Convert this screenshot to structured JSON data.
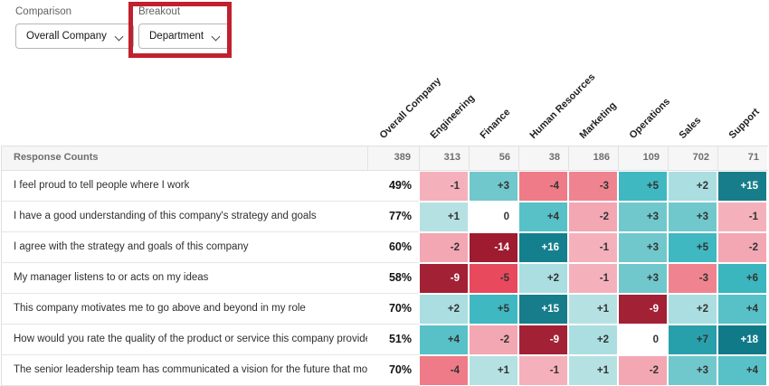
{
  "toolbar": {
    "comparison_label": "Comparison",
    "comparison_value": "Overall Company",
    "breakout_label": "Breakout",
    "breakout_value": "Department",
    "highlight_color": "#c1202e"
  },
  "chart_data": {
    "type": "heatmap",
    "columns": [
      "Overall Company",
      "Engineering",
      "Finance",
      "Human Resources",
      "Marketing",
      "Operations",
      "Sales",
      "Support"
    ],
    "response_counts_label": "Response Counts",
    "response_counts": [
      "389",
      "313",
      "56",
      "38",
      "186",
      "109",
      "702",
      "71"
    ],
    "rows": [
      {
        "label": "I feel proud to tell people where I work",
        "overall_pct": "49%",
        "deltas": [
          "-1",
          "+3",
          "-4",
          "-3",
          "+5",
          "+2",
          "+15"
        ]
      },
      {
        "label": "I have a good understanding of this company's strategy and goals",
        "overall_pct": "77%",
        "deltas": [
          "+1",
          "0",
          "+4",
          "-2",
          "+3",
          "+3",
          "-1"
        ]
      },
      {
        "label": "I agree with the strategy and goals of this company",
        "overall_pct": "60%",
        "deltas": [
          "-2",
          "-14",
          "+16",
          "-1",
          "+3",
          "+5",
          "-2"
        ]
      },
      {
        "label": "My manager listens to or acts on my ideas",
        "overall_pct": "58%",
        "deltas": [
          "-9",
          "-5",
          "+2",
          "-1",
          "+3",
          "-3",
          "+6"
        ]
      },
      {
        "label": "This company motivates me to go above and beyond in my role",
        "overall_pct": "70%",
        "deltas": [
          "+2",
          "+5",
          "+15",
          "+1",
          "-9",
          "+2",
          "+4"
        ]
      },
      {
        "label": "How would you rate the quality of the product or service this company provides to its customers?",
        "overall_pct": "51%",
        "deltas": [
          "+4",
          "-2",
          "-9",
          "+2",
          "0",
          "+7",
          "+18"
        ]
      },
      {
        "label": "The senior leadership team has communicated a vision for the future that motivates me",
        "overall_pct": "70%",
        "deltas": [
          "-4",
          "+1",
          "-1",
          "+1",
          "-2",
          "+3",
          "+4"
        ]
      }
    ],
    "value_colors": {
      "-14": {
        "bg": "#9e1b30",
        "fg": "#ffffff"
      },
      "-9": {
        "bg": "#a32135",
        "fg": "#ffffff"
      },
      "-5": {
        "bg": "#e8495d",
        "fg": "#333333"
      },
      "-4": {
        "bg": "#ee7b87",
        "fg": "#333333"
      },
      "-3": {
        "bg": "#ef8490",
        "fg": "#333333"
      },
      "-2": {
        "bg": "#f2a7b3",
        "fg": "#333333"
      },
      "-1": {
        "bg": "#f5b1bb",
        "fg": "#333333"
      },
      "0": {
        "bg": "#ffffff",
        "fg": "#333333"
      },
      "+1": {
        "bg": "#b6e1e3",
        "fg": "#333333"
      },
      "+2": {
        "bg": "#abdee1",
        "fg": "#333333"
      },
      "+3": {
        "bg": "#70c8cc",
        "fg": "#333333"
      },
      "+4": {
        "bg": "#57c1c7",
        "fg": "#333333"
      },
      "+5": {
        "bg": "#40b8c1",
        "fg": "#333333"
      },
      "+6": {
        "bg": "#3bb5be",
        "fg": "#333333"
      },
      "+7": {
        "bg": "#28a0ab",
        "fg": "#333333"
      },
      "+15": {
        "bg": "#177d8b",
        "fg": "#ffffff"
      },
      "+16": {
        "bg": "#14808d",
        "fg": "#ffffff"
      },
      "+18": {
        "bg": "#117a89",
        "fg": "#ffffff"
      }
    }
  }
}
